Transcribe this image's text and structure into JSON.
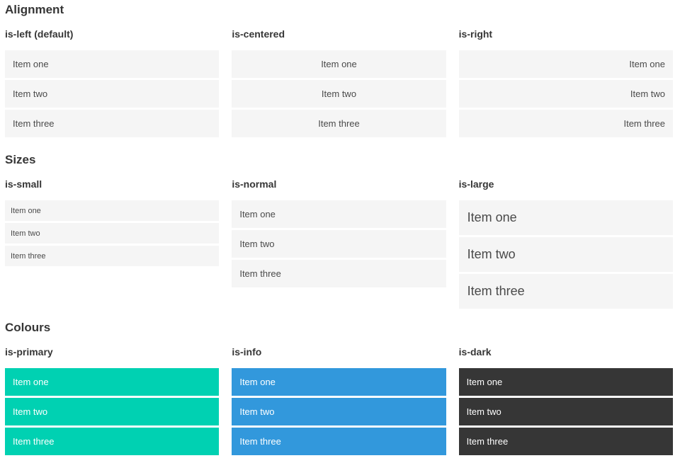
{
  "sections": [
    {
      "title": "Alignment",
      "columns": [
        {
          "label": "is-left (default)",
          "items": [
            "Item one",
            "Item two",
            "Item three"
          ]
        },
        {
          "label": "is-centered",
          "items": [
            "Item one",
            "Item two",
            "Item three"
          ]
        },
        {
          "label": "is-right",
          "items": [
            "Item one",
            "Item two",
            "Item three"
          ]
        }
      ]
    },
    {
      "title": "Sizes",
      "columns": [
        {
          "label": "is-small",
          "items": [
            "Item one",
            "Item two",
            "Item three"
          ]
        },
        {
          "label": "is-normal",
          "items": [
            "Item one",
            "Item two",
            "Item three"
          ]
        },
        {
          "label": "is-large",
          "items": [
            "Item one",
            "Item two",
            "Item three"
          ]
        }
      ]
    },
    {
      "title": "Colours",
      "columns": [
        {
          "label": "is-primary",
          "items": [
            "Item one",
            "Item two",
            "Item three"
          ]
        },
        {
          "label": "is-info",
          "items": [
            "Item one",
            "Item two",
            "Item three"
          ]
        },
        {
          "label": "is-dark",
          "items": [
            "Item one",
            "Item two",
            "Item three"
          ]
        }
      ]
    }
  ],
  "colors": {
    "item_bg": "#f5f5f5",
    "primary": "#00d1b2",
    "info": "#3298dc",
    "dark": "#363636",
    "heading_text": "#363636",
    "item_text": "#4a4a4a",
    "item_text_on_color": "#ffffff"
  }
}
